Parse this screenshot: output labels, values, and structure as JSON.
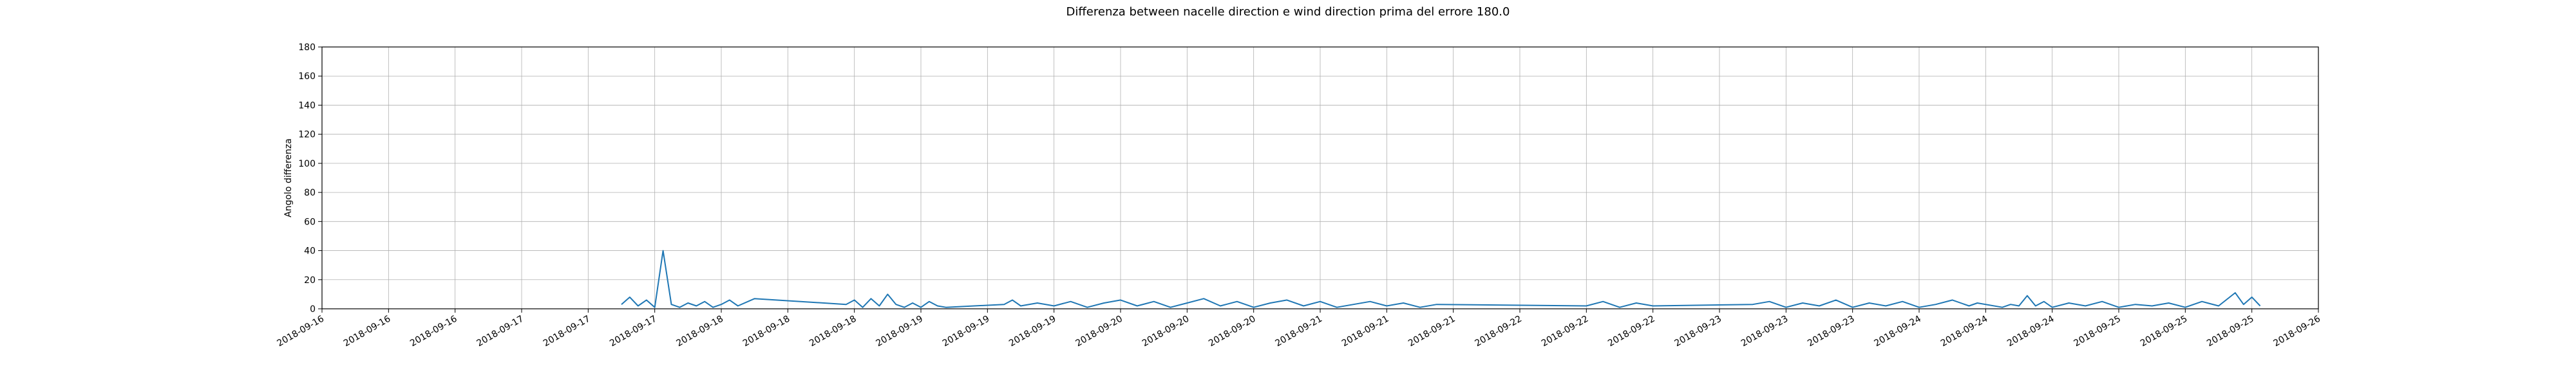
{
  "chart_data": {
    "type": "line",
    "title": "Differenza between nacelle direction e wind direction prima del errore 180.0",
    "xlabel": "",
    "ylabel": "Angolo differenza",
    "ylim": [
      0,
      180
    ],
    "y_ticks": [
      0,
      20,
      40,
      60,
      80,
      100,
      120,
      140,
      160,
      180
    ],
    "x_tick_labels": [
      "2018-09-16",
      "2018-09-16",
      "2018-09-16",
      "2018-09-17",
      "2018-09-17",
      "2018-09-17",
      "2018-09-18",
      "2018-09-18",
      "2018-09-18",
      "2018-09-19",
      "2018-09-19",
      "2018-09-19",
      "2018-09-20",
      "2018-09-20",
      "2018-09-20",
      "2018-09-21",
      "2018-09-21",
      "2018-09-21",
      "2018-09-22",
      "2018-09-22",
      "2018-09-22",
      "2018-09-23",
      "2018-09-23",
      "2018-09-23",
      "2018-09-24",
      "2018-09-24",
      "2018-09-24",
      "2018-09-25",
      "2018-09-25",
      "2018-09-25",
      "2018-09-26"
    ],
    "grid": true,
    "series": [
      {
        "color": "#1f77b4",
        "x": [
          "2018-09-17 12:00",
          "2018-09-17 13:00",
          "2018-09-17 14:00",
          "2018-09-17 15:00",
          "2018-09-17 16:00",
          "2018-09-17 17:00",
          "2018-09-17 18:00",
          "2018-09-17 19:00",
          "2018-09-17 20:00",
          "2018-09-17 21:00",
          "2018-09-17 22:00",
          "2018-09-17 23:00",
          "2018-09-18 00:00",
          "2018-09-18 01:00",
          "2018-09-18 02:00",
          "2018-09-18 04:00",
          "2018-09-18 15:00",
          "2018-09-18 16:00",
          "2018-09-18 17:00",
          "2018-09-18 18:00",
          "2018-09-18 19:00",
          "2018-09-18 20:00",
          "2018-09-18 21:00",
          "2018-09-18 22:00",
          "2018-09-18 23:00",
          "2018-09-19 00:00",
          "2018-09-19 01:00",
          "2018-09-19 02:00",
          "2018-09-19 03:00",
          "2018-09-19 10:00",
          "2018-09-19 11:00",
          "2018-09-19 12:00",
          "2018-09-19 14:00",
          "2018-09-19 16:00",
          "2018-09-19 18:00",
          "2018-09-19 20:00",
          "2018-09-19 22:00",
          "2018-09-20 00:00",
          "2018-09-20 02:00",
          "2018-09-20 04:00",
          "2018-09-20 06:00",
          "2018-09-20 08:00",
          "2018-09-20 10:00",
          "2018-09-20 12:00",
          "2018-09-20 14:00",
          "2018-09-20 16:00",
          "2018-09-20 18:00",
          "2018-09-20 20:00",
          "2018-09-20 22:00",
          "2018-09-21 00:00",
          "2018-09-21 02:00",
          "2018-09-21 04:00",
          "2018-09-21 06:00",
          "2018-09-21 08:00",
          "2018-09-21 10:00",
          "2018-09-21 12:00",
          "2018-09-21 14:00",
          "2018-09-22 08:00",
          "2018-09-22 10:00",
          "2018-09-22 12:00",
          "2018-09-22 14:00",
          "2018-09-22 16:00",
          "2018-09-23 04:00",
          "2018-09-23 06:00",
          "2018-09-23 08:00",
          "2018-09-23 10:00",
          "2018-09-23 12:00",
          "2018-09-23 14:00",
          "2018-09-23 16:00",
          "2018-09-23 18:00",
          "2018-09-23 20:00",
          "2018-09-23 22:00",
          "2018-09-24 00:00",
          "2018-09-24 02:00",
          "2018-09-24 04:00",
          "2018-09-24 06:00",
          "2018-09-24 07:00",
          "2018-09-24 10:00",
          "2018-09-24 11:00",
          "2018-09-24 12:00",
          "2018-09-24 13:00",
          "2018-09-24 14:00",
          "2018-09-24 15:00",
          "2018-09-24 16:00",
          "2018-09-24 18:00",
          "2018-09-24 20:00",
          "2018-09-24 22:00",
          "2018-09-25 00:00",
          "2018-09-25 02:00",
          "2018-09-25 04:00",
          "2018-09-25 06:00",
          "2018-09-25 08:00",
          "2018-09-25 10:00",
          "2018-09-25 12:00",
          "2018-09-25 14:00",
          "2018-09-25 15:00",
          "2018-09-25 16:00",
          "2018-09-25 17:00"
        ],
        "y": [
          3,
          8,
          2,
          6,
          1,
          40,
          3,
          1,
          4,
          2,
          5,
          1,
          3,
          6,
          2,
          7,
          3,
          6,
          1,
          7,
          2,
          10,
          3,
          1,
          4,
          1,
          5,
          2,
          1,
          3,
          6,
          2,
          4,
          2,
          5,
          1,
          4,
          6,
          2,
          5,
          1,
          4,
          7,
          2,
          5,
          1,
          4,
          6,
          2,
          5,
          1,
          3,
          5,
          2,
          4,
          1,
          3,
          2,
          5,
          1,
          4,
          2,
          3,
          5,
          1,
          4,
          2,
          6,
          1,
          4,
          2,
          5,
          1,
          3,
          6,
          2,
          4,
          1,
          3,
          2,
          9,
          2,
          5,
          1,
          4,
          2,
          5,
          1,
          3,
          2,
          4,
          1,
          5,
          2,
          11,
          3,
          8,
          2
        ]
      }
    ]
  }
}
